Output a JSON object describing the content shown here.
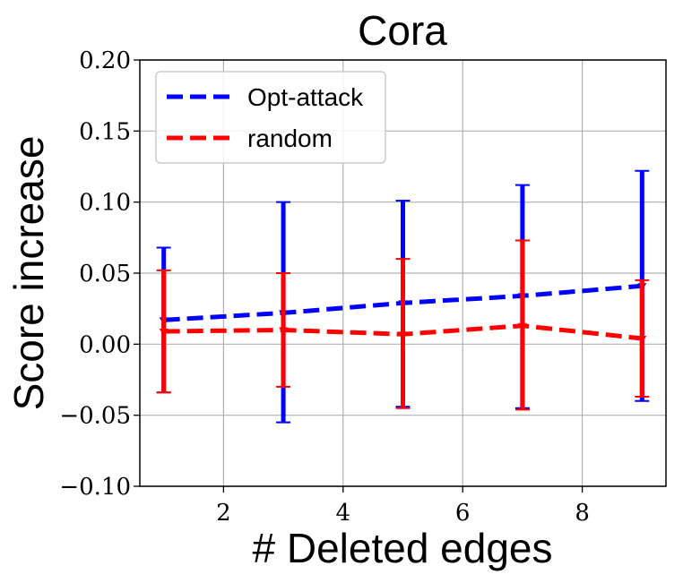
{
  "chart_data": {
    "type": "line",
    "title": "Cora",
    "xlabel": "# Deleted edges",
    "ylabel": "Score increase",
    "xlim": [
      0.6,
      9.4
    ],
    "ylim": [
      -0.1,
      0.2
    ],
    "xticks": [
      2,
      4,
      6,
      8
    ],
    "yticks": [
      -0.1,
      -0.05,
      0.0,
      0.05,
      0.1,
      0.15,
      0.2
    ],
    "xtick_labels": [
      "2",
      "4",
      "6",
      "8"
    ],
    "ytick_labels": [
      "−0.10",
      "−0.05",
      "0.00",
      "0.05",
      "0.10",
      "0.15",
      "0.20"
    ],
    "grid": true,
    "legend_position": "upper-left",
    "x": [
      1,
      3,
      5,
      7,
      9
    ],
    "series": [
      {
        "name": "Opt-attack",
        "color": "#0000ff",
        "linestyle": "dashed",
        "values": [
          0.017,
          0.022,
          0.029,
          0.034,
          0.041
        ],
        "err_low": [
          -0.034,
          -0.055,
          -0.044,
          -0.045,
          -0.04
        ],
        "err_high": [
          0.068,
          0.1,
          0.101,
          0.112,
          0.122
        ]
      },
      {
        "name": "random",
        "color": "#ff0000",
        "linestyle": "dashed",
        "values": [
          0.009,
          0.01,
          0.007,
          0.013,
          0.004
        ],
        "err_low": [
          -0.034,
          -0.03,
          -0.045,
          -0.046,
          -0.037
        ],
        "err_high": [
          0.052,
          0.05,
          0.06,
          0.073,
          0.045
        ]
      }
    ]
  }
}
